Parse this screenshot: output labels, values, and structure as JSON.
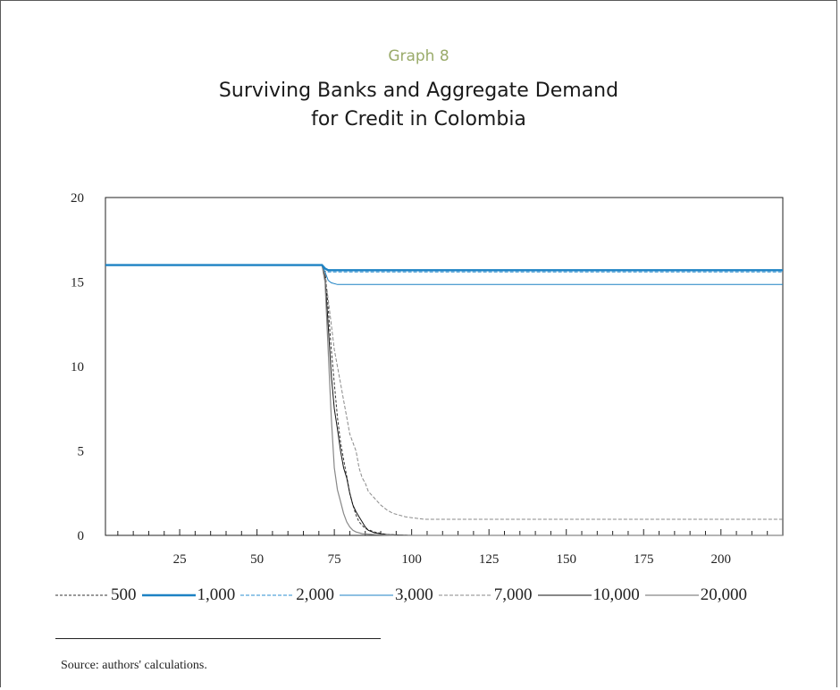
{
  "header": {
    "graph_label": "Graph 8",
    "title_line1": "Surviving Banks and Aggregate Demand",
    "title_line2": "for Credit in Colombia"
  },
  "source": "Source: authors' calculations.",
  "chart_data": {
    "type": "line",
    "title": "Surviving Banks and Aggregate Demand for Credit in Colombia",
    "xlabel": "",
    "ylabel": "",
    "xlim": [
      1,
      220
    ],
    "ylim": [
      0,
      20
    ],
    "x_ticks": [
      25,
      50,
      75,
      100,
      125,
      150,
      175,
      200
    ],
    "y_ticks": [
      0,
      5,
      10,
      15,
      20
    ],
    "grid": false,
    "legend_position": "bottom",
    "series": [
      {
        "name": "500",
        "color": "#333333",
        "dash": "3,2",
        "width": 1,
        "points": [
          [
            1,
            16
          ],
          [
            71,
            16
          ],
          [
            72,
            15.8
          ],
          [
            73,
            13.5
          ],
          [
            74,
            11
          ],
          [
            75,
            9
          ],
          [
            76,
            7
          ],
          [
            77,
            5.5
          ],
          [
            78,
            4.5
          ],
          [
            79,
            3.5
          ],
          [
            80,
            2.5
          ],
          [
            81,
            1.8
          ],
          [
            82,
            1.2
          ],
          [
            83,
            0.8
          ],
          [
            85,
            0.4
          ],
          [
            88,
            0.2
          ],
          [
            92,
            0.05
          ],
          [
            100,
            0
          ],
          [
            220,
            0
          ]
        ]
      },
      {
        "name": "1,000",
        "color": "#1d82c4",
        "dash": "",
        "width": 2.4,
        "points": [
          [
            1,
            16
          ],
          [
            71,
            16
          ],
          [
            72,
            15.8
          ],
          [
            73,
            15.7
          ],
          [
            220,
            15.7
          ]
        ]
      },
      {
        "name": "2,000",
        "color": "#2b8fd0",
        "dash": "4,2",
        "width": 1,
        "points": [
          [
            1,
            16
          ],
          [
            71,
            16
          ],
          [
            72,
            15.8
          ],
          [
            73,
            15.6
          ],
          [
            220,
            15.6
          ]
        ]
      },
      {
        "name": "3,000",
        "color": "#1d82c4",
        "dash": "",
        "width": 1,
        "points": [
          [
            1,
            16
          ],
          [
            71,
            16
          ],
          [
            72,
            15.6
          ],
          [
            73,
            15.1
          ],
          [
            74,
            14.95
          ],
          [
            76,
            14.85
          ],
          [
            220,
            14.85
          ]
        ]
      },
      {
        "name": "7,000",
        "color": "#8a8a8a",
        "dash": "4,2",
        "width": 1,
        "points": [
          [
            1,
            16
          ],
          [
            71,
            16
          ],
          [
            72,
            15.5
          ],
          [
            73,
            14
          ],
          [
            74,
            12.5
          ],
          [
            75,
            11
          ],
          [
            76,
            10
          ],
          [
            77,
            9
          ],
          [
            78,
            8
          ],
          [
            79,
            7
          ],
          [
            80,
            6
          ],
          [
            81,
            5.5
          ],
          [
            82,
            5
          ],
          [
            83,
            4
          ],
          [
            84,
            3.4
          ],
          [
            85,
            3.1
          ],
          [
            86,
            2.6
          ],
          [
            88,
            2.2
          ],
          [
            90,
            1.8
          ],
          [
            92,
            1.5
          ],
          [
            94,
            1.3
          ],
          [
            96,
            1.2
          ],
          [
            98,
            1.1
          ],
          [
            100,
            1.05
          ],
          [
            104,
            0.95
          ],
          [
            220,
            0.95
          ]
        ]
      },
      {
        "name": "10,000",
        "color": "#111111",
        "dash": "",
        "width": 1,
        "points": [
          [
            1,
            16
          ],
          [
            71,
            16
          ],
          [
            72,
            15.3
          ],
          [
            73,
            12.5
          ],
          [
            74,
            9.5
          ],
          [
            75,
            7.5
          ],
          [
            76,
            6.3
          ],
          [
            77,
            5
          ],
          [
            78,
            4
          ],
          [
            79,
            3.4
          ],
          [
            80,
            2.5
          ],
          [
            81,
            1.8
          ],
          [
            82,
            1.4
          ],
          [
            83,
            1.1
          ],
          [
            84,
            0.8
          ],
          [
            85,
            0.5
          ],
          [
            86,
            0.3
          ],
          [
            88,
            0.15
          ],
          [
            92,
            0.05
          ],
          [
            100,
            0
          ],
          [
            220,
            0
          ]
        ]
      },
      {
        "name": "20,000",
        "color": "#888888",
        "dash": "",
        "width": 1.2,
        "points": [
          [
            1,
            16
          ],
          [
            71,
            16
          ],
          [
            72,
            15
          ],
          [
            73,
            11
          ],
          [
            74,
            7
          ],
          [
            75,
            4
          ],
          [
            76,
            2.7
          ],
          [
            77,
            2
          ],
          [
            78,
            1.3
          ],
          [
            79,
            0.8
          ],
          [
            80,
            0.5
          ],
          [
            81,
            0.3
          ],
          [
            82,
            0.2
          ],
          [
            84,
            0.1
          ],
          [
            88,
            0.05
          ],
          [
            95,
            0
          ],
          [
            220,
            0
          ]
        ]
      }
    ]
  }
}
